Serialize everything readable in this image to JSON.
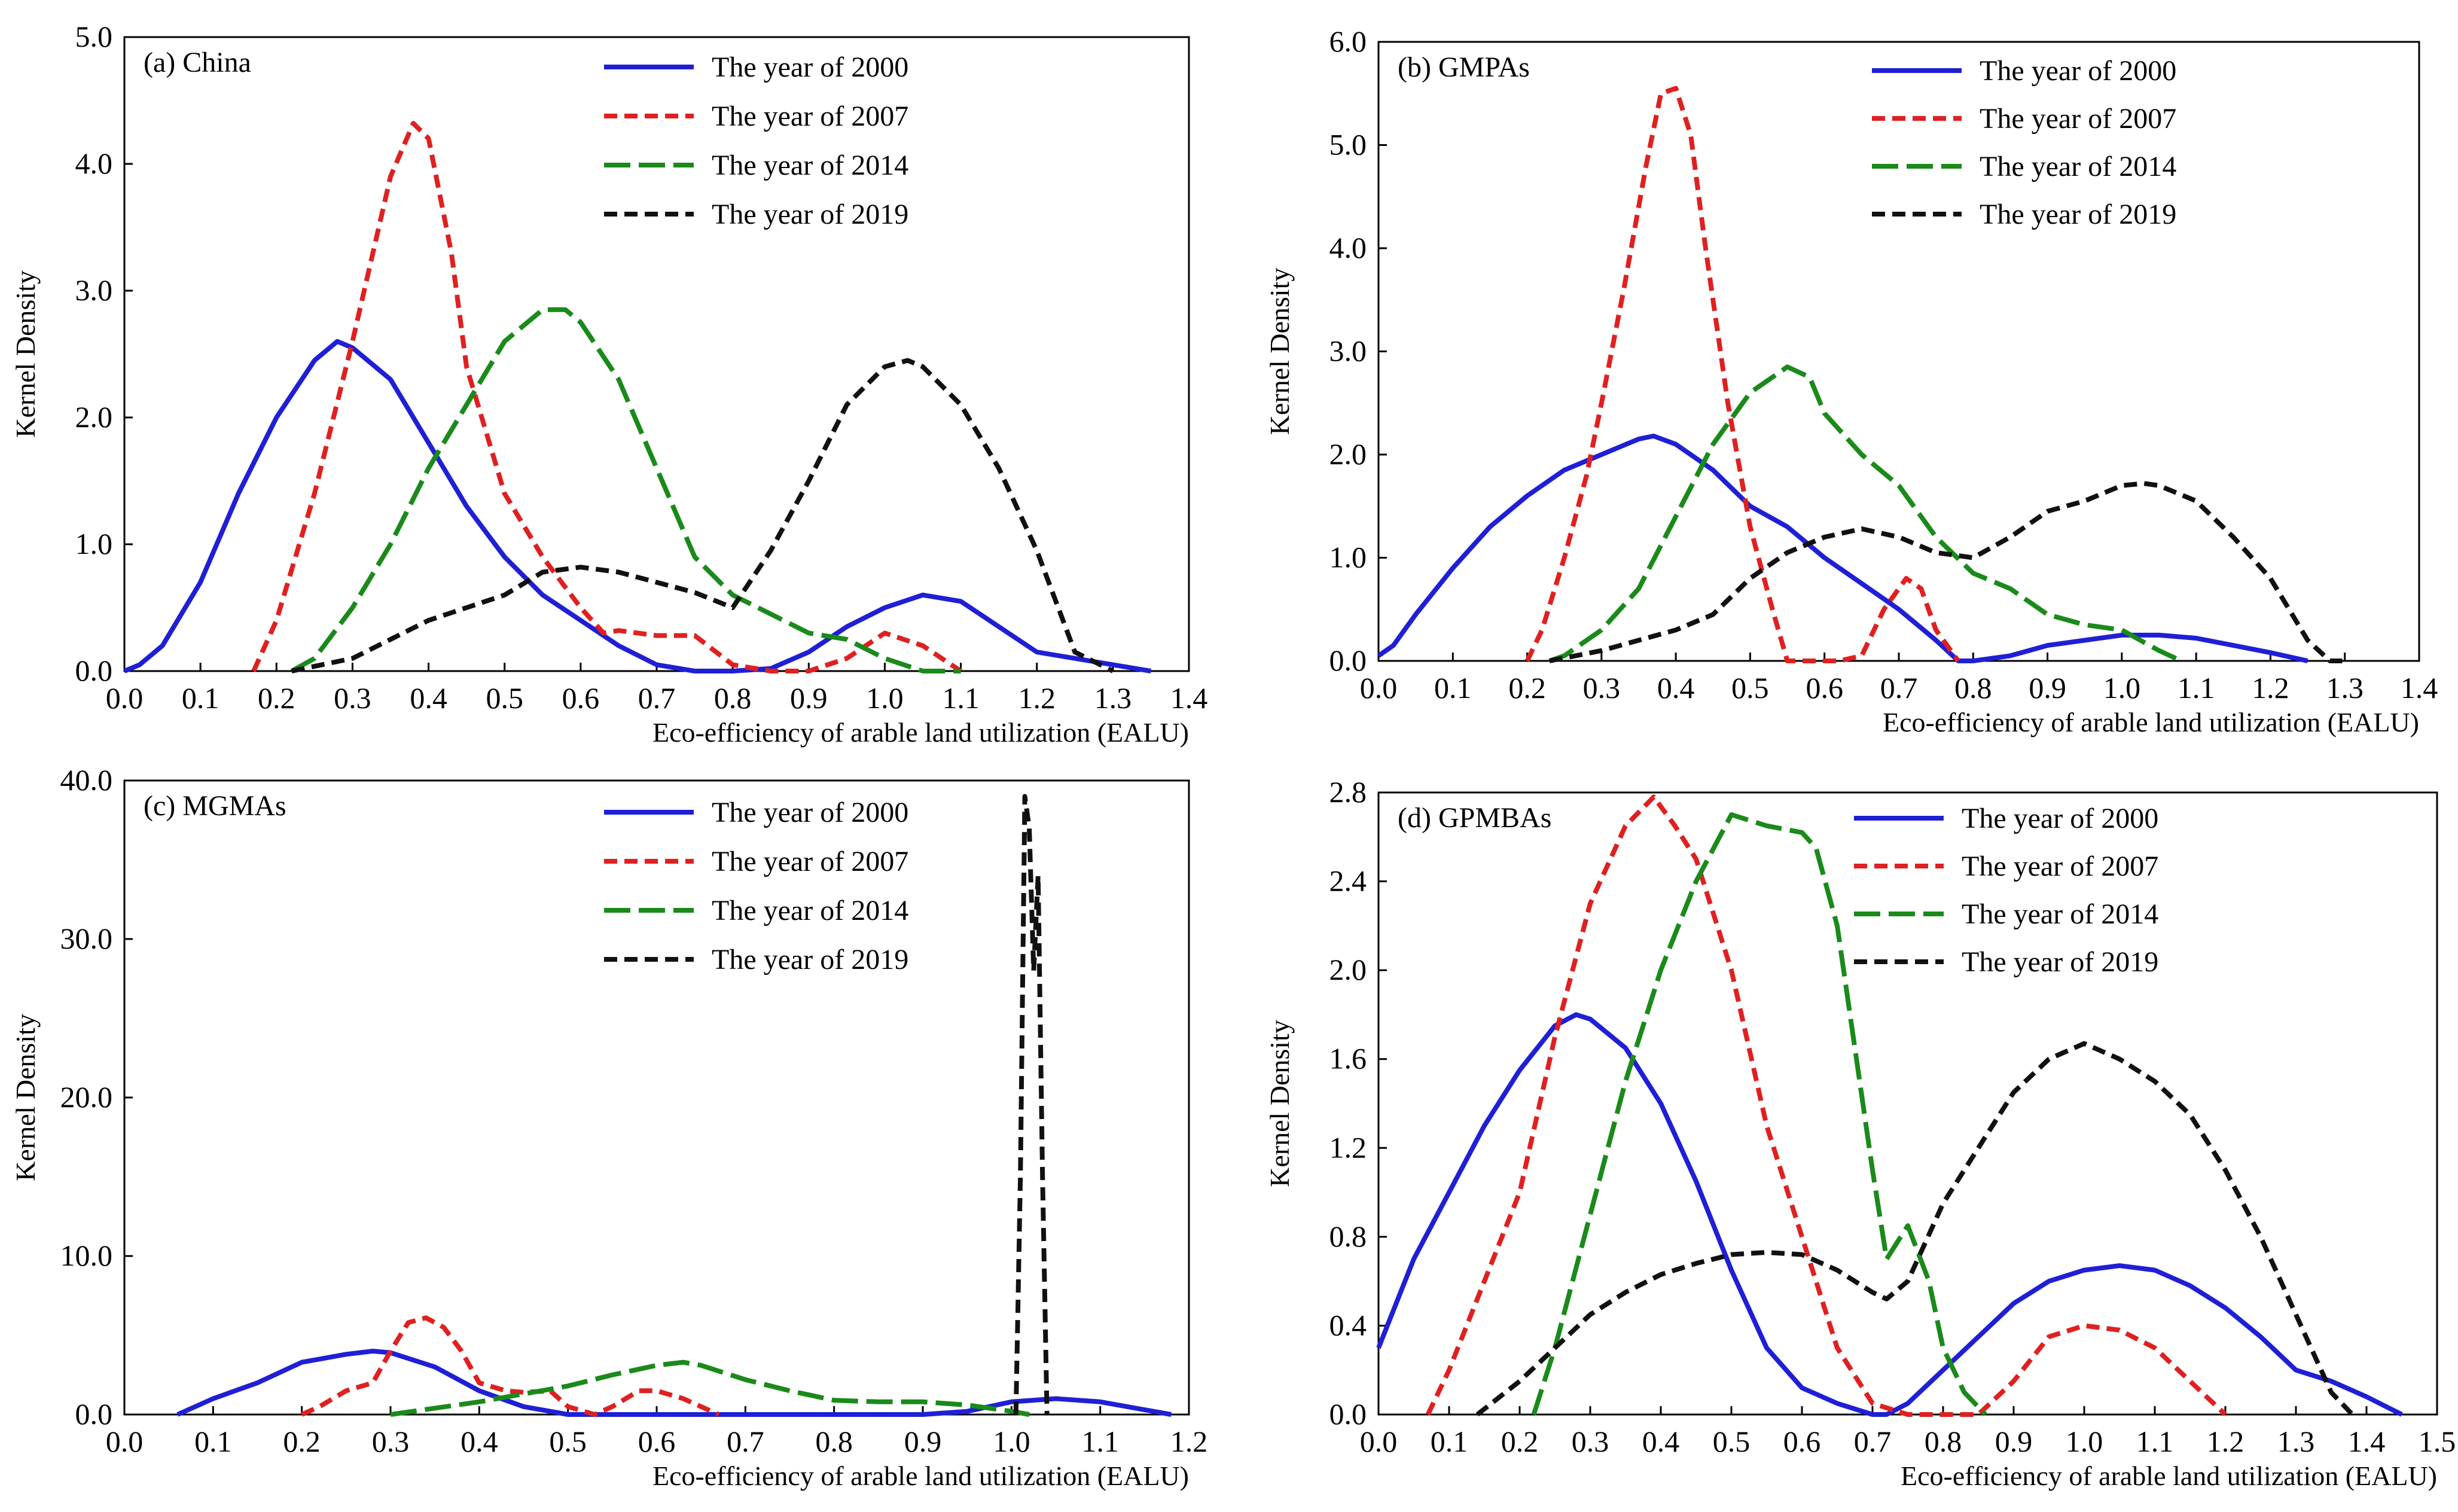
{
  "figure_description_none": null,
  "chart_data": [
    {
      "type": "line",
      "title": "(a) China",
      "xlabel": "Eco-efficiency of arable land utilization (EALU)",
      "ylabel": "Kernel Density",
      "xlim": [
        0.0,
        1.4
      ],
      "ylim": [
        0.0,
        5.0
      ],
      "xticks": [
        "0.0",
        "0.1",
        "0.2",
        "0.3",
        "0.4",
        "0.5",
        "0.6",
        "0.7",
        "0.8",
        "0.9",
        "1.0",
        "1.1",
        "1.2",
        "1.3",
        "1.4"
      ],
      "yticks": [
        "0.0",
        "1.0",
        "2.0",
        "3.0",
        "4.0",
        "5.0"
      ],
      "legend_position": "top-center",
      "series": [
        {
          "name": "The year of 2000",
          "color": "#1f1fd6",
          "dash": "solid",
          "x": [
            0.0,
            0.02,
            0.05,
            0.1,
            0.15,
            0.2,
            0.25,
            0.28,
            0.3,
            0.35,
            0.4,
            0.45,
            0.5,
            0.55,
            0.6,
            0.65,
            0.7,
            0.75,
            0.8,
            0.85,
            0.9,
            0.95,
            1.0,
            1.05,
            1.1,
            1.15,
            1.2,
            1.25,
            1.3,
            1.35
          ],
          "y": [
            0.0,
            0.05,
            0.2,
            0.7,
            1.4,
            2.0,
            2.45,
            2.6,
            2.55,
            2.3,
            1.8,
            1.3,
            0.9,
            0.6,
            0.4,
            0.2,
            0.05,
            0.0,
            0.0,
            0.02,
            0.15,
            0.35,
            0.5,
            0.6,
            0.55,
            0.35,
            0.15,
            0.1,
            0.05,
            0.0
          ]
        },
        {
          "name": "The year of 2007",
          "color": "#e02020",
          "dash": "short",
          "x": [
            0.17,
            0.2,
            0.25,
            0.3,
            0.35,
            0.38,
            0.4,
            0.43,
            0.45,
            0.5,
            0.55,
            0.6,
            0.63,
            0.65,
            0.7,
            0.75,
            0.8,
            0.85,
            0.9,
            0.95,
            1.0,
            1.05,
            1.1
          ],
          "y": [
            0.0,
            0.4,
            1.4,
            2.6,
            3.9,
            4.32,
            4.2,
            3.3,
            2.4,
            1.4,
            0.9,
            0.5,
            0.3,
            0.32,
            0.28,
            0.28,
            0.05,
            0.0,
            0.0,
            0.1,
            0.3,
            0.2,
            0.0
          ]
        },
        {
          "name": "The year of 2014",
          "color": "#1a8a1a",
          "dash": "long",
          "x": [
            0.22,
            0.25,
            0.3,
            0.35,
            0.4,
            0.45,
            0.5,
            0.55,
            0.58,
            0.6,
            0.65,
            0.7,
            0.75,
            0.8,
            0.85,
            0.9,
            0.95,
            1.0,
            1.05,
            1.1
          ],
          "y": [
            0.0,
            0.1,
            0.5,
            1.0,
            1.6,
            2.1,
            2.6,
            2.85,
            2.85,
            2.75,
            2.3,
            1.6,
            0.9,
            0.6,
            0.45,
            0.3,
            0.25,
            0.1,
            0.0,
            0.0
          ]
        },
        {
          "name": "The year of 2019",
          "color": "#111111",
          "dash": "short",
          "x": [
            0.22,
            0.3,
            0.35,
            0.4,
            0.45,
            0.5,
            0.55,
            0.6,
            0.65,
            0.7,
            0.75,
            0.8,
            0.85,
            0.9,
            0.95,
            1.0,
            1.03,
            1.05,
            1.1,
            1.15,
            1.2,
            1.25,
            1.3
          ],
          "y": [
            0.0,
            0.1,
            0.25,
            0.4,
            0.5,
            0.6,
            0.78,
            0.82,
            0.78,
            0.7,
            0.62,
            0.5,
            0.95,
            1.5,
            2.1,
            2.4,
            2.45,
            2.4,
            2.1,
            1.6,
            0.95,
            0.15,
            0.0
          ]
        }
      ]
    },
    {
      "type": "line",
      "title": "(b) GMPAs",
      "xlabel": "Eco-efficiency of arable land utilization (EALU)",
      "ylabel": "Kernel Density",
      "xlim": [
        0.0,
        1.4
      ],
      "ylim": [
        0.0,
        6.0
      ],
      "xticks": [
        "0.0",
        "0.1",
        "0.2",
        "0.3",
        "0.4",
        "0.5",
        "0.6",
        "0.7",
        "0.8",
        "0.9",
        "1.0",
        "1.1",
        "1.2",
        "1.3",
        "1.4"
      ],
      "yticks": [
        "0.0",
        "1.0",
        "2.0",
        "3.0",
        "4.0",
        "5.0",
        "6.0"
      ],
      "legend_position": "top-right",
      "series": [
        {
          "name": "The year of 2000",
          "color": "#1f1fd6",
          "dash": "solid",
          "x": [
            0.0,
            0.02,
            0.05,
            0.1,
            0.15,
            0.2,
            0.25,
            0.3,
            0.35,
            0.37,
            0.4,
            0.45,
            0.5,
            0.55,
            0.6,
            0.65,
            0.7,
            0.75,
            0.78,
            0.8,
            0.85,
            0.9,
            0.95,
            1.0,
            1.05,
            1.1,
            1.15,
            1.2,
            1.25
          ],
          "y": [
            0.05,
            0.15,
            0.45,
            0.9,
            1.3,
            1.6,
            1.85,
            2.0,
            2.15,
            2.18,
            2.1,
            1.85,
            1.5,
            1.3,
            1.0,
            0.75,
            0.5,
            0.2,
            0.0,
            0.0,
            0.05,
            0.15,
            0.2,
            0.25,
            0.25,
            0.22,
            0.15,
            0.08,
            0.0
          ]
        },
        {
          "name": "The year of 2007",
          "color": "#e02020",
          "dash": "short",
          "x": [
            0.2,
            0.22,
            0.25,
            0.28,
            0.3,
            0.33,
            0.36,
            0.38,
            0.4,
            0.42,
            0.44,
            0.47,
            0.5,
            0.53,
            0.55,
            0.58,
            0.62,
            0.65,
            0.68,
            0.71,
            0.73,
            0.75,
            0.78
          ],
          "y": [
            0.0,
            0.3,
            1.0,
            1.8,
            2.5,
            3.6,
            4.8,
            5.5,
            5.55,
            5.1,
            4.0,
            2.5,
            1.3,
            0.5,
            0.0,
            0.0,
            0.0,
            0.05,
            0.5,
            0.8,
            0.7,
            0.3,
            0.0
          ]
        },
        {
          "name": "The year of 2014",
          "color": "#1a8a1a",
          "dash": "long",
          "x": [
            0.23,
            0.25,
            0.3,
            0.35,
            0.4,
            0.45,
            0.5,
            0.55,
            0.58,
            0.6,
            0.65,
            0.7,
            0.75,
            0.8,
            0.85,
            0.9,
            0.95,
            1.0,
            1.05,
            1.08
          ],
          "y": [
            0.0,
            0.05,
            0.3,
            0.7,
            1.4,
            2.1,
            2.6,
            2.85,
            2.75,
            2.4,
            2.0,
            1.7,
            1.2,
            0.85,
            0.7,
            0.45,
            0.35,
            0.3,
            0.1,
            0.0
          ]
        },
        {
          "name": "The year of 2019",
          "color": "#111111",
          "dash": "short",
          "x": [
            0.23,
            0.3,
            0.35,
            0.4,
            0.45,
            0.5,
            0.55,
            0.6,
            0.65,
            0.7,
            0.75,
            0.8,
            0.85,
            0.9,
            0.95,
            1.0,
            1.03,
            1.05,
            1.1,
            1.15,
            1.2,
            1.25,
            1.28,
            1.3
          ],
          "y": [
            0.0,
            0.1,
            0.2,
            0.3,
            0.45,
            0.8,
            1.05,
            1.2,
            1.28,
            1.2,
            1.05,
            1.0,
            1.2,
            1.45,
            1.55,
            1.7,
            1.72,
            1.7,
            1.55,
            1.2,
            0.8,
            0.2,
            0.0,
            0.0
          ]
        }
      ]
    },
    {
      "type": "line",
      "title": "(c) MGMAs",
      "xlabel": "Eco-efficiency of arable land utilization (EALU)",
      "ylabel": "Kernel Density",
      "xlim": [
        0.0,
        1.2
      ],
      "ylim": [
        0.0,
        40.0
      ],
      "xticks": [
        "0.0",
        "0.1",
        "0.2",
        "0.3",
        "0.4",
        "0.5",
        "0.6",
        "0.7",
        "0.8",
        "0.9",
        "1.0",
        "1.1",
        "1.2"
      ],
      "yticks": [
        "0.0",
        "10.0",
        "20.0",
        "30.0",
        "40.0"
      ],
      "legend_position": "top-center",
      "series": [
        {
          "name": "The year of 2000",
          "color": "#1f1fd6",
          "dash": "solid",
          "x": [
            0.06,
            0.1,
            0.15,
            0.2,
            0.25,
            0.28,
            0.3,
            0.35,
            0.4,
            0.45,
            0.5,
            0.55,
            0.6,
            0.7,
            0.8,
            0.9,
            0.95,
            1.0,
            1.05,
            1.1,
            1.15,
            1.18
          ],
          "y": [
            0.0,
            1.0,
            2.0,
            3.3,
            3.8,
            4.0,
            3.9,
            3.0,
            1.5,
            0.5,
            0.0,
            0.0,
            0.0,
            0.0,
            0.0,
            0.0,
            0.2,
            0.8,
            1.0,
            0.8,
            0.3,
            0.0
          ]
        },
        {
          "name": "The year of 2007",
          "color": "#e02020",
          "dash": "short",
          "x": [
            0.2,
            0.22,
            0.25,
            0.28,
            0.3,
            0.32,
            0.34,
            0.36,
            0.38,
            0.4,
            0.43,
            0.45,
            0.48,
            0.5,
            0.53,
            0.55,
            0.58,
            0.6,
            0.63,
            0.65,
            0.67
          ],
          "y": [
            0.0,
            0.5,
            1.5,
            2.0,
            4.0,
            5.8,
            6.1,
            5.5,
            4.0,
            2.0,
            1.5,
            1.4,
            1.5,
            0.5,
            0.0,
            0.5,
            1.5,
            1.5,
            1.0,
            0.5,
            0.0
          ]
        },
        {
          "name": "The year of 2014",
          "color": "#1a8a1a",
          "dash": "long",
          "x": [
            0.3,
            0.35,
            0.4,
            0.45,
            0.5,
            0.55,
            0.6,
            0.63,
            0.65,
            0.7,
            0.75,
            0.8,
            0.85,
            0.9,
            0.95,
            1.0,
            1.02
          ],
          "y": [
            0.0,
            0.4,
            0.8,
            1.3,
            1.8,
            2.5,
            3.1,
            3.3,
            3.1,
            2.2,
            1.5,
            0.9,
            0.8,
            0.8,
            0.6,
            0.2,
            0.0
          ]
        },
        {
          "name": "The year of 2019",
          "color": "#111111",
          "dash": "short",
          "x": [
            1.005,
            1.01,
            1.015,
            1.02,
            1.025,
            1.03,
            1.035,
            1.04
          ],
          "y": [
            0.0,
            15.0,
            39.0,
            37.0,
            28.0,
            34.0,
            15.0,
            0.0
          ]
        }
      ]
    },
    {
      "type": "line",
      "title": "(d) GPMBAs",
      "xlabel": "Eco-efficiency of arable land utilization (EALU)",
      "ylabel": "Kernel Density",
      "xlim": [
        0.0,
        1.5
      ],
      "ylim": [
        0.0,
        2.8
      ],
      "xticks": [
        "0.0",
        "0.1",
        "0.2",
        "0.3",
        "0.4",
        "0.5",
        "0.6",
        "0.7",
        "0.8",
        "0.9",
        "1.0",
        "1.1",
        "1.2",
        "1.3",
        "1.4",
        "1.5"
      ],
      "yticks": [
        "0.0",
        "0.4",
        "0.8",
        "1.2",
        "1.6",
        "2.0",
        "2.4",
        "2.8"
      ],
      "legend_position": "top-right",
      "series": [
        {
          "name": "The year of 2000",
          "color": "#1f1fd6",
          "dash": "solid",
          "x": [
            0.0,
            0.05,
            0.1,
            0.15,
            0.2,
            0.25,
            0.28,
            0.3,
            0.35,
            0.4,
            0.45,
            0.5,
            0.55,
            0.6,
            0.65,
            0.7,
            0.72,
            0.75,
            0.8,
            0.85,
            0.9,
            0.95,
            1.0,
            1.05,
            1.1,
            1.15,
            1.2,
            1.25,
            1.3,
            1.35,
            1.4,
            1.45
          ],
          "y": [
            0.3,
            0.7,
            1.0,
            1.3,
            1.55,
            1.75,
            1.8,
            1.78,
            1.65,
            1.4,
            1.05,
            0.65,
            0.3,
            0.12,
            0.05,
            0.0,
            0.0,
            0.05,
            0.2,
            0.35,
            0.5,
            0.6,
            0.65,
            0.67,
            0.65,
            0.58,
            0.48,
            0.35,
            0.2,
            0.15,
            0.08,
            0.0
          ]
        },
        {
          "name": "The year of 2007",
          "color": "#e02020",
          "dash": "short",
          "x": [
            0.07,
            0.1,
            0.15,
            0.2,
            0.25,
            0.3,
            0.35,
            0.39,
            0.42,
            0.45,
            0.5,
            0.55,
            0.6,
            0.65,
            0.7,
            0.75,
            0.8,
            0.85,
            0.9,
            0.95,
            1.0,
            1.05,
            1.1,
            1.15,
            1.2
          ],
          "y": [
            0.0,
            0.2,
            0.6,
            1.0,
            1.7,
            2.3,
            2.65,
            2.78,
            2.65,
            2.5,
            2.0,
            1.3,
            0.8,
            0.3,
            0.05,
            0.0,
            0.0,
            0.0,
            0.15,
            0.35,
            0.4,
            0.38,
            0.3,
            0.15,
            0.0
          ]
        },
        {
          "name": "The year of 2014",
          "color": "#1a8a1a",
          "dash": "long",
          "x": [
            0.22,
            0.25,
            0.3,
            0.35,
            0.4,
            0.45,
            0.5,
            0.55,
            0.6,
            0.62,
            0.65,
            0.7,
            0.72,
            0.75,
            0.78,
            0.8,
            0.83,
            0.86
          ],
          "y": [
            0.0,
            0.3,
            0.9,
            1.5,
            2.0,
            2.4,
            2.7,
            2.65,
            2.62,
            2.55,
            2.2,
            1.1,
            0.7,
            0.85,
            0.6,
            0.3,
            0.1,
            0.0
          ]
        },
        {
          "name": "The year of 2019",
          "color": "#111111",
          "dash": "short",
          "x": [
            0.14,
            0.2,
            0.25,
            0.3,
            0.35,
            0.4,
            0.45,
            0.5,
            0.55,
            0.6,
            0.65,
            0.7,
            0.72,
            0.75,
            0.8,
            0.85,
            0.9,
            0.95,
            1.0,
            1.05,
            1.1,
            1.15,
            1.2,
            1.25,
            1.3,
            1.35,
            1.38
          ],
          "y": [
            0.0,
            0.15,
            0.3,
            0.45,
            0.55,
            0.63,
            0.68,
            0.72,
            0.73,
            0.72,
            0.65,
            0.55,
            0.52,
            0.6,
            0.95,
            1.2,
            1.45,
            1.6,
            1.67,
            1.6,
            1.5,
            1.35,
            1.1,
            0.8,
            0.45,
            0.1,
            0.0
          ]
        }
      ]
    }
  ]
}
